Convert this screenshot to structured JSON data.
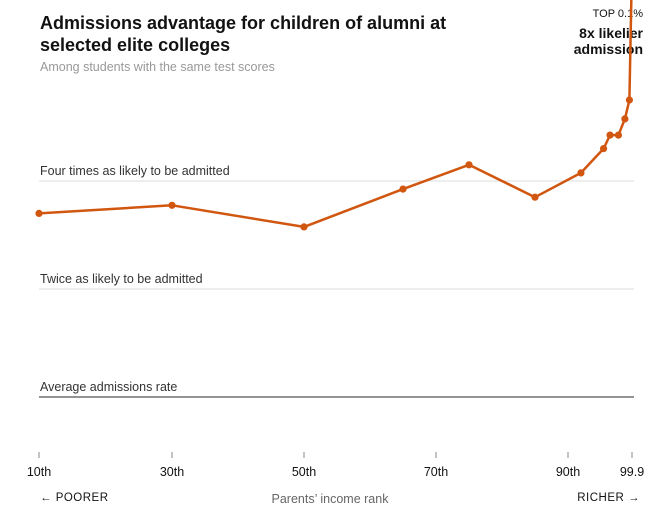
{
  "header": {
    "title": "Admissions advantage for children of alumni at selected elite colleges",
    "subtitle": "Among students with the same test scores"
  },
  "annotation": {
    "tag": "TOP 0.1%",
    "line1": "8x likelier",
    "line2": "admission"
  },
  "footer": {
    "left": "← POORER",
    "center": "Parents’ income rank",
    "right": "RICHER →"
  },
  "colors": {
    "series": "#d1560f",
    "gridline": "#dddddd",
    "baseline": "#555555"
  },
  "chart_data": {
    "type": "line",
    "title": "Admissions advantage for children of alumni at selected elite colleges",
    "subtitle": "Among students with the same test scores",
    "xlabel": "Parents’ income rank",
    "ylabel": "",
    "x": [
      10,
      30,
      50,
      65,
      75,
      85,
      92,
      95.5,
      96.5,
      97.8,
      98.8,
      99.5,
      99.9
    ],
    "values": [
      3.4,
      3.55,
      3.15,
      3.85,
      4.3,
      3.7,
      4.15,
      4.6,
      4.85,
      4.85,
      5.15,
      5.5,
      8.0
    ],
    "xticks": [
      {
        "value": 10,
        "label": "10th"
      },
      {
        "value": 30,
        "label": "30th"
      },
      {
        "value": 50,
        "label": "50th"
      },
      {
        "value": 70,
        "label": "70th"
      },
      {
        "value": 90,
        "label": "90th"
      },
      {
        "value": 99.9,
        "label": "99.9"
      }
    ],
    "reference_lines": [
      {
        "value": 4,
        "label": "Four times as likely to be admitted"
      },
      {
        "value": 2,
        "label": "Twice as likely to be admitted"
      },
      {
        "value": 0,
        "label": "Average admissions rate"
      }
    ],
    "ylim": [
      0,
      8
    ],
    "grid": true,
    "legend": "none"
  }
}
